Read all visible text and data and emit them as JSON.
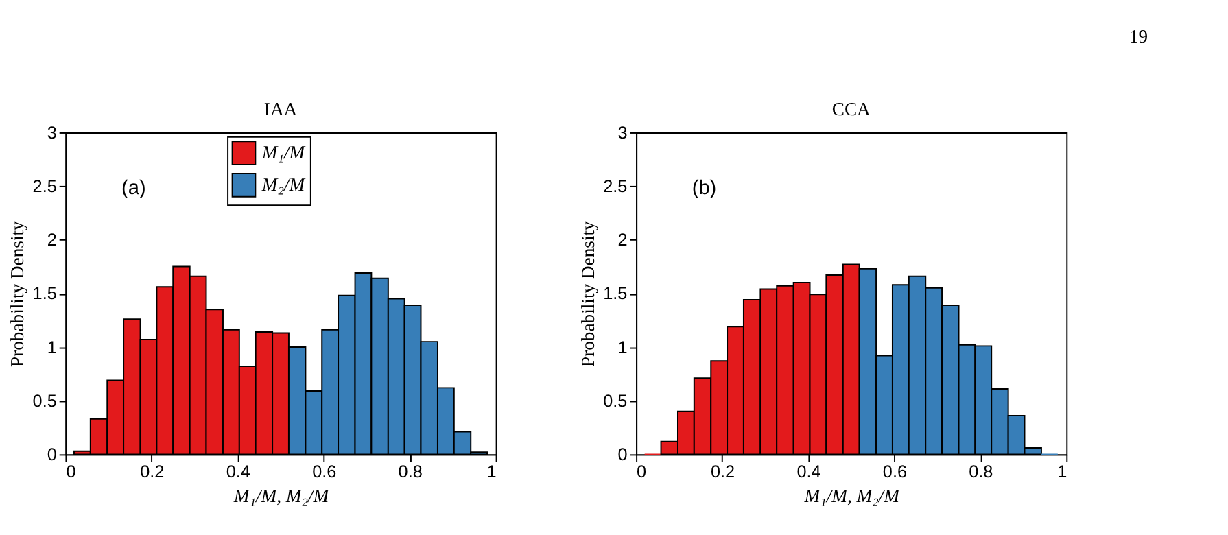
{
  "chart_data": [
    {
      "type": "histogram",
      "title": "IAA",
      "xlabel": "M₁/M,    M₂/M",
      "ylabel": "Probability Density",
      "bins": [
        0.02,
        0.058,
        0.097,
        0.135,
        0.174,
        0.212,
        0.25,
        0.289,
        0.327,
        0.366,
        0.404,
        0.442,
        0.481,
        0.519,
        0.558,
        0.596,
        0.634,
        0.673,
        0.711,
        0.75,
        0.788,
        0.826,
        0.865,
        0.903,
        0.942,
        0.98
      ],
      "series": [
        {
          "name": "M₁/M",
          "color": "#e31a1c",
          "values": [
            0.03,
            0.33,
            0.69,
            1.26,
            1.07,
            1.56,
            1.75,
            1.66,
            1.35,
            1.16,
            0.82,
            1.14,
            1.13,
            null,
            null,
            null,
            null,
            null,
            null,
            null,
            null,
            null,
            null,
            null,
            null
          ]
        },
        {
          "name": "M₂/M",
          "color": "#377eb8",
          "values": [
            null,
            null,
            null,
            null,
            null,
            null,
            null,
            null,
            null,
            null,
            null,
            null,
            null,
            1.0,
            0.59,
            1.16,
            1.48,
            1.69,
            1.64,
            1.45,
            1.39,
            1.05,
            0.62,
            0.21,
            0.02
          ]
        }
      ],
      "xlim": [
        0,
        1
      ],
      "ylim": [
        0,
        3
      ],
      "xticks": [
        0,
        0.2,
        0.4,
        0.6,
        0.8,
        1
      ],
      "yticks": [
        0,
        0.5,
        1,
        1.5,
        2,
        2.5,
        3
      ],
      "grid": false,
      "legend": "top",
      "annotations": [
        "(a)"
      ]
    },
    {
      "type": "histogram",
      "title": "CCA",
      "xlabel": "M₁/M,    M₂/M",
      "ylabel": "Probability Density",
      "bins": [
        0.02,
        0.058,
        0.097,
        0.135,
        0.174,
        0.212,
        0.25,
        0.289,
        0.327,
        0.366,
        0.404,
        0.442,
        0.481,
        0.519,
        0.558,
        0.596,
        0.634,
        0.673,
        0.711,
        0.75,
        0.788,
        0.826,
        0.865,
        0.903,
        0.942,
        0.98
      ],
      "series": [
        {
          "name": "M₁/M",
          "color": "#e31a1c",
          "values": [
            0,
            0.12,
            0.4,
            0.71,
            0.87,
            1.19,
            1.44,
            1.54,
            1.57,
            1.6,
            1.49,
            1.67,
            1.77,
            null,
            null,
            null,
            null,
            null,
            null,
            null,
            null,
            null,
            null,
            null,
            null
          ]
        },
        {
          "name": "M₂/M",
          "color": "#377eb8",
          "values": [
            null,
            null,
            null,
            null,
            null,
            null,
            null,
            null,
            null,
            null,
            null,
            null,
            null,
            1.73,
            0.92,
            1.58,
            1.66,
            1.55,
            1.39,
            1.02,
            1.01,
            0.61,
            0.36,
            0.06,
            0
          ]
        }
      ],
      "xlim": [
        0,
        1
      ],
      "ylim": [
        0,
        3
      ],
      "xticks": [
        0,
        0.2,
        0.4,
        0.6,
        0.8,
        1
      ],
      "yticks": [
        0,
        0.5,
        1,
        1.5,
        2,
        2.5,
        3
      ],
      "grid": false,
      "legend": "top",
      "annotations": [
        "(b)",
        "19"
      ]
    }
  ]
}
